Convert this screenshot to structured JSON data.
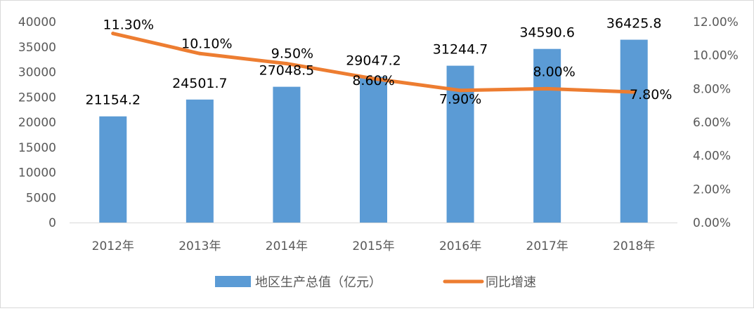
{
  "chart_data": {
    "type": "bar",
    "categories": [
      "2012年",
      "2013年",
      "2014年",
      "2015年",
      "2016年",
      "2017年",
      "2018年"
    ],
    "series": [
      {
        "name": "地区生产总值（亿元）",
        "type": "bar",
        "axis": "left",
        "color": "#5b9bd5",
        "values": [
          21154.2,
          24501.7,
          27048.5,
          29047.2,
          31244.7,
          34590.6,
          36425.8
        ],
        "labels": [
          "21154.2",
          "24501.7",
          "27048.5",
          "29047.2",
          "31244.7",
          "34590.6",
          "36425.8"
        ]
      },
      {
        "name": "同比增速",
        "type": "line",
        "axis": "right",
        "color": "#ed7d31",
        "values": [
          11.3,
          10.1,
          9.5,
          8.6,
          7.9,
          8.0,
          7.8
        ],
        "labels": [
          "11.30%",
          "10.10%",
          "9.50%",
          "8.60%",
          "7.90%",
          "8.00%",
          "7.80%"
        ]
      }
    ],
    "y_left": {
      "ylim": [
        0,
        40000
      ],
      "ticks": [
        "0",
        "5000",
        "10000",
        "15000",
        "20000",
        "25000",
        "30000",
        "35000",
        "40000"
      ]
    },
    "y_right": {
      "ylim": [
        0,
        12
      ],
      "ticks": [
        "0.00%",
        "2.00%",
        "4.00%",
        "6.00%",
        "8.00%",
        "10.00%",
        "12.00%"
      ]
    },
    "grid": false,
    "legend": "bottom",
    "title": "",
    "xlabel": "",
    "ylabel": ""
  }
}
